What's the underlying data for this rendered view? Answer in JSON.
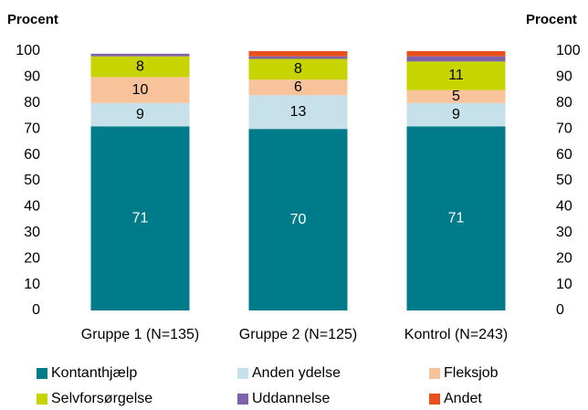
{
  "chart_data": {
    "type": "stacked_bar",
    "ylabel": "Procent",
    "y2label": "Procent",
    "categories": [
      "Gruppe 1 (N=135)",
      "Gruppe 2 (N=125)",
      "Kontrol (N=243)"
    ],
    "series": [
      {
        "name": "Kontanthjælp",
        "color": "#007b8a",
        "values": [
          71,
          70,
          71
        ],
        "show_labels": true,
        "label_color": "#ffffff"
      },
      {
        "name": "Anden ydelse",
        "color": "#c6e1ea",
        "values": [
          9,
          13,
          9
        ],
        "show_labels": true,
        "label_color": "#000000"
      },
      {
        "name": "Fleksjob",
        "color": "#f8c39b",
        "values": [
          10,
          6,
          5
        ],
        "show_labels": true,
        "label_color": "#000000"
      },
      {
        "name": "Selvforsørgelse",
        "color": "#c8d400",
        "values": [
          8,
          8,
          11
        ],
        "show_labels": true,
        "label_color": "#000000"
      },
      {
        "name": "Uddannelse",
        "color": "#7f63a8",
        "values": [
          1,
          1,
          2
        ],
        "show_labels": false,
        "label_color": "#000000"
      },
      {
        "name": "Andet",
        "color": "#e8501e",
        "values": [
          0,
          2,
          2
        ],
        "show_labels": false,
        "label_color": "#000000"
      }
    ],
    "ylim": [
      0,
      100
    ],
    "yticks": [
      0,
      10,
      20,
      30,
      40,
      50,
      60,
      70,
      80,
      90,
      100
    ],
    "y2lim": [
      0,
      100
    ],
    "y2ticks": [
      0,
      10,
      20,
      30,
      40,
      50,
      60,
      70,
      80,
      90,
      100
    ],
    "grid": false,
    "legend": "bottom"
  }
}
